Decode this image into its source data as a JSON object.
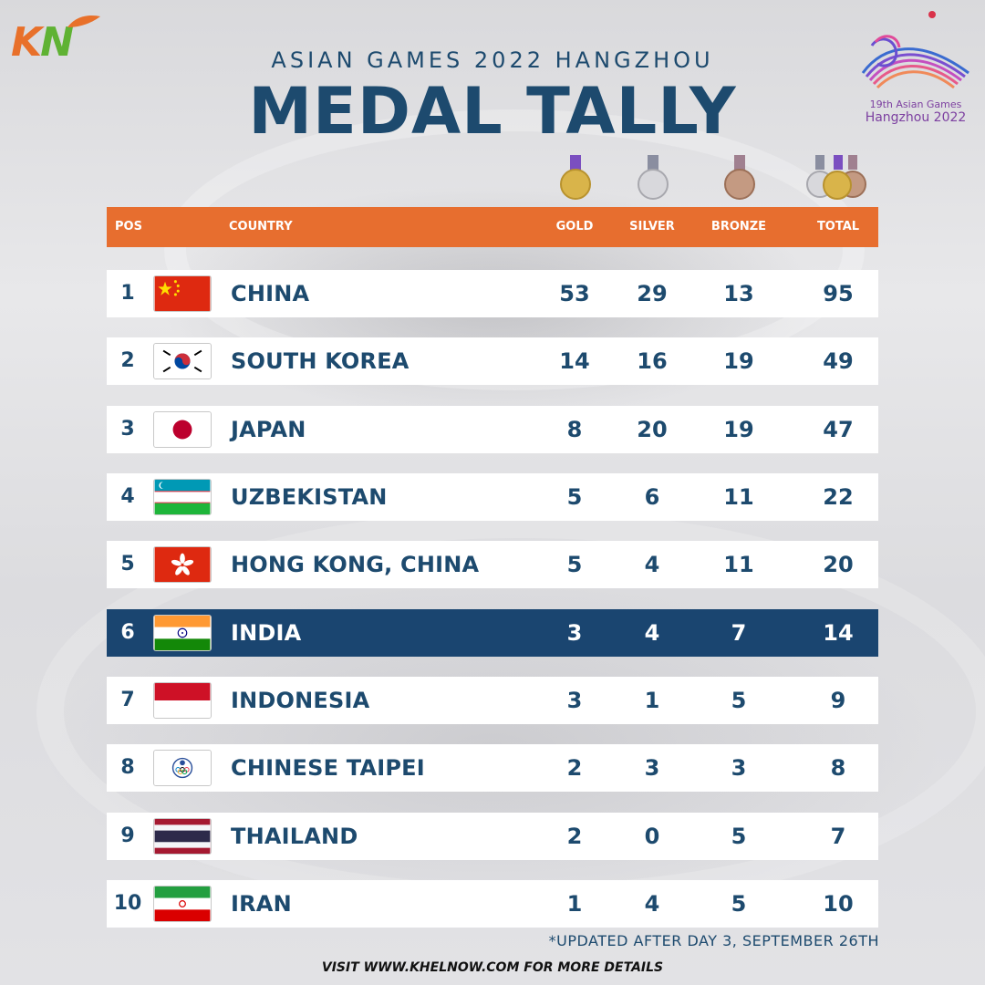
{
  "brand": {
    "logo_text_k": "K",
    "logo_text_n": "N"
  },
  "games_logo": {
    "line1": "19th Asian Games",
    "line2": "Hangzhou 2022"
  },
  "header": {
    "subtitle": "ASIAN GAMES 2022 HANGZHOU",
    "title": "MEDAL TALLY"
  },
  "table": {
    "columns": {
      "pos": "POS",
      "country": "COUNTRY",
      "gold": "GOLD",
      "silver": "SILVER",
      "bronze": "BRONZE",
      "total": "TOTAL"
    },
    "rows": [
      {
        "pos": "1",
        "country": "CHINA",
        "gold": "53",
        "silver": "29",
        "bronze": "13",
        "total": "95",
        "flag": "china-flag-icon"
      },
      {
        "pos": "2",
        "country": "SOUTH KOREA",
        "gold": "14",
        "silver": "16",
        "bronze": "19",
        "total": "49",
        "flag": "south-korea-flag-icon"
      },
      {
        "pos": "3",
        "country": "JAPAN",
        "gold": "8",
        "silver": "20",
        "bronze": "19",
        "total": "47",
        "flag": "japan-flag-icon"
      },
      {
        "pos": "4",
        "country": "UZBEKISTAN",
        "gold": "5",
        "silver": "6",
        "bronze": "11",
        "total": "22",
        "flag": "uzbekistan-flag-icon"
      },
      {
        "pos": "5",
        "country": "HONG KONG, CHINA",
        "gold": "5",
        "silver": "4",
        "bronze": "11",
        "total": "20",
        "flag": "hong-kong-flag-icon"
      },
      {
        "pos": "6",
        "country": "INDIA",
        "gold": "3",
        "silver": "4",
        "bronze": "7",
        "total": "14",
        "flag": "india-flag-icon"
      },
      {
        "pos": "7",
        "country": "INDONESIA",
        "gold": "3",
        "silver": "1",
        "bronze": "5",
        "total": "9",
        "flag": "indonesia-flag-icon"
      },
      {
        "pos": "8",
        "country": "CHINESE TAIPEI",
        "gold": "2",
        "silver": "3",
        "bronze": "3",
        "total": "8",
        "flag": "chinese-taipei-flag-icon"
      },
      {
        "pos": "9",
        "country": "THAILAND",
        "gold": "2",
        "silver": "0",
        "bronze": "5",
        "total": "7",
        "flag": "thailand-flag-icon"
      },
      {
        "pos": "10",
        "country": "IRAN",
        "gold": "1",
        "silver": "4",
        "bronze": "5",
        "total": "10",
        "flag": "iran-flag-icon"
      }
    ],
    "highlighted_row": "INDIA"
  },
  "footnote": "*UPDATED AFTER DAY 3, SEPTEMBER 26TH",
  "visit": "VISIT WWW.KHELNOW.COM FOR MORE DETAILS",
  "colors": {
    "accent": "#e76e2f",
    "navy": "#1d4a6e",
    "highlight_row": "#1a4570",
    "gold": "#d9b44a",
    "silver": "#c8c8cc",
    "bronze": "#b9856a"
  }
}
